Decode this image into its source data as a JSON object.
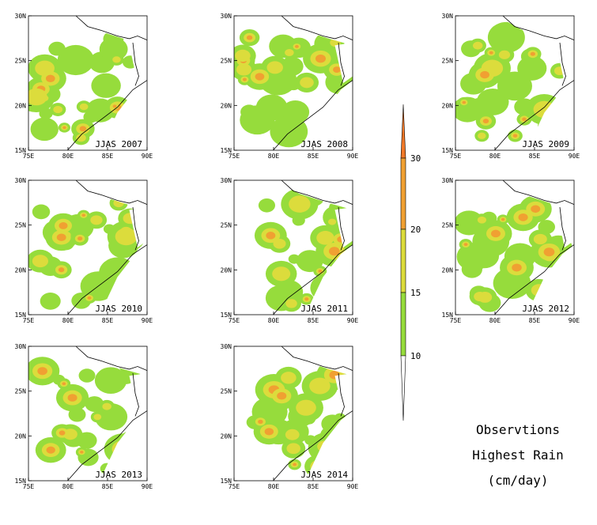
{
  "colors": {
    "lt10": "#ffffff",
    "b10_15": "#96dc3c",
    "b15_20": "#dcdc3c",
    "b20_30": "#f0a032",
    "gt30": "#f07828",
    "border": "#000000"
  },
  "axes": {
    "lat_labels": [
      "30N",
      "25N",
      "20N",
      "15N"
    ],
    "lon_labels": [
      "75E",
      "80E",
      "85E",
      "90E"
    ]
  },
  "panels": [
    {
      "label": "JJAS 2007"
    },
    {
      "label": "JJAS 2008"
    },
    {
      "label": "JJAS 2009"
    },
    {
      "label": "JJAS 2010"
    },
    {
      "label": "JJAS 2011"
    },
    {
      "label": "JJAS 2012"
    },
    {
      "label": "JJAS 2013"
    },
    {
      "label": "JJAS 2014"
    }
  ],
  "colorbar": {
    "ticks": [
      "30",
      "20",
      "15",
      "10"
    ]
  },
  "legend": {
    "line1": "Observtions",
    "line2": "Highest Rain",
    "line3": "(cm/day)"
  }
}
